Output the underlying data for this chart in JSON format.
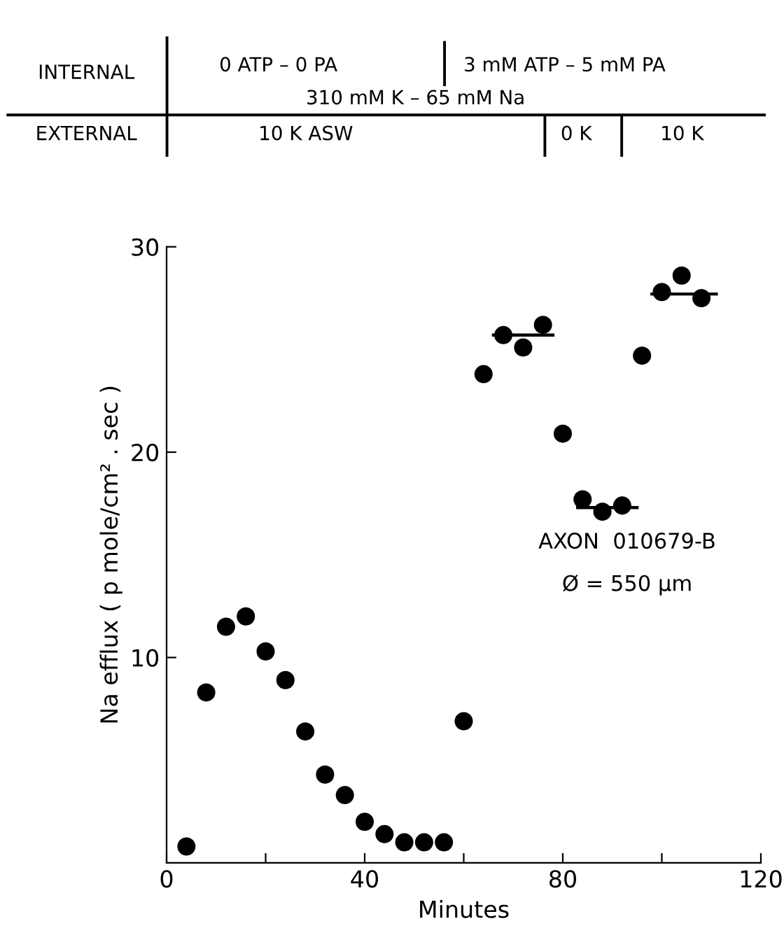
{
  "chart_data": {
    "type": "scatter",
    "xlabel": "Minutes",
    "ylabel": "Na efflux ( p mole/cm² . sec )",
    "xlim": [
      0,
      120
    ],
    "ylim": [
      0,
      30
    ],
    "xticks": [
      0,
      {
        "value": 20,
        "label": null
      },
      40,
      {
        "value": 60,
        "label": null
      },
      80,
      {
        "value": 100,
        "label": null
      },
      120
    ],
    "yticks": [
      10,
      20,
      30
    ],
    "grid": false,
    "legend": false,
    "series": [
      {
        "marker": "circle",
        "color": "#000000",
        "x": [
          4,
          8,
          12,
          16,
          20,
          24,
          28,
          32,
          36,
          40,
          44,
          48,
          52,
          56,
          60,
          64,
          68,
          72,
          76,
          80,
          84,
          88,
          92,
          96,
          100,
          104,
          108
        ],
        "values": [
          0.8,
          8.3,
          11.5,
          12.0,
          10.3,
          8.9,
          6.4,
          4.3,
          3.3,
          2.0,
          1.4,
          1.0,
          1.0,
          1.0,
          6.9,
          23.8,
          25.7,
          25.1,
          26.2,
          20.9,
          17.7,
          17.1,
          17.4,
          24.7,
          27.8,
          28.6,
          27.5
        ]
      },
      {
        "type": "line",
        "marker": "none",
        "color": "#000000",
        "x": [
          66,
          78
        ],
        "values": [
          25.7,
          25.7
        ]
      },
      {
        "type": "line",
        "marker": "none",
        "color": "#000000",
        "x": [
          83,
          95
        ],
        "values": [
          17.3,
          17.3
        ]
      },
      {
        "type": "line",
        "marker": "none",
        "color": "#000000",
        "x": [
          98,
          111
        ],
        "values": [
          27.7,
          27.7
        ]
      }
    ],
    "annotations": [
      "INTERNAL",
      "0 ATP – 0 PA",
      "3 mM ATP – 5 mM PA",
      "310 mM K – 65 mM Na",
      "EXTERNAL",
      "10 K ASW",
      "0 K",
      "10 K",
      "AXON  010679-B",
      "Ø = 550 µm"
    ]
  }
}
